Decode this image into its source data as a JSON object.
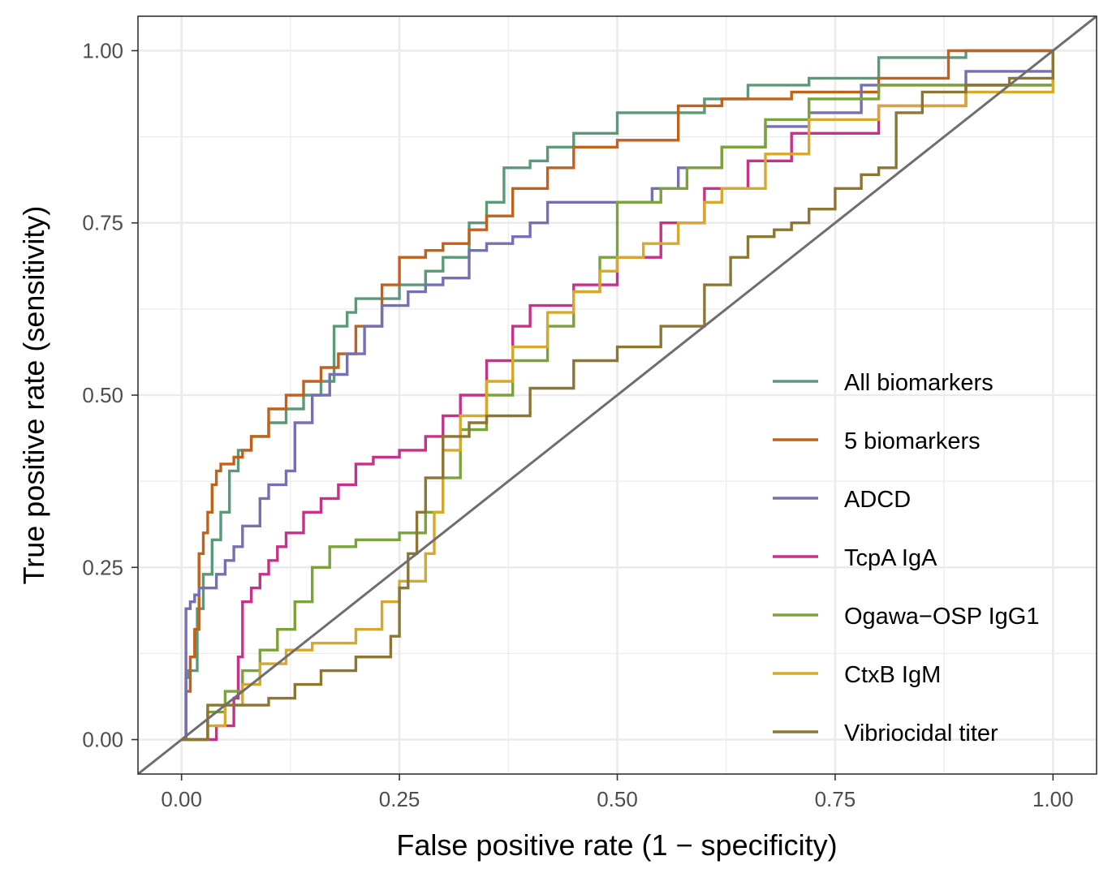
{
  "chart_data": {
    "type": "line",
    "title": "",
    "xlabel": "False positive rate (1 − specificity)",
    "ylabel": "True positive rate (sensitivity)",
    "xlim": [
      -0.05,
      1.05
    ],
    "ylim": [
      -0.05,
      1.05
    ],
    "x_ticks": [
      0,
      0.25,
      0.5,
      0.75,
      1
    ],
    "y_ticks": [
      0,
      0.25,
      0.5,
      0.75,
      1
    ],
    "x_tick_labels": [
      "0.00",
      "0.25",
      "0.50",
      "0.75",
      "1.00"
    ],
    "y_tick_labels": [
      "0.00",
      "0.25",
      "0.50",
      "0.75",
      "1.00"
    ],
    "grid": true,
    "legend_position": "bottom-right, inside",
    "reference_line": {
      "x": [
        0,
        1
      ],
      "y": [
        0,
        1
      ],
      "color": "#6e6e6e"
    },
    "series": [
      {
        "name": "All biomarkers",
        "color": "#5a9a78",
        "x": [
          0,
          0.005,
          0.008,
          0.01,
          0.018,
          0.025,
          0.035,
          0.045,
          0.055,
          0.065,
          0.08,
          0.1,
          0.12,
          0.14,
          0.16,
          0.175,
          0.19,
          0.2,
          0.22,
          0.25,
          0.28,
          0.3,
          0.33,
          0.35,
          0.37,
          0.4,
          0.42,
          0.45,
          0.5,
          0.55,
          0.6,
          0.65,
          0.72,
          0.8,
          0.9,
          1
        ],
        "y": [
          0,
          0.09,
          0.1,
          0.1,
          0.19,
          0.24,
          0.29,
          0.33,
          0.39,
          0.42,
          0.44,
          0.46,
          0.48,
          0.5,
          0.52,
          0.6,
          0.62,
          0.64,
          0.64,
          0.66,
          0.68,
          0.7,
          0.75,
          0.78,
          0.83,
          0.84,
          0.86,
          0.88,
          0.91,
          0.91,
          0.93,
          0.95,
          0.96,
          0.99,
          1,
          1
        ]
      },
      {
        "name": "5 biomarkers",
        "color": "#c0611c",
        "x": [
          0,
          0.005,
          0.01,
          0.015,
          0.02,
          0.025,
          0.03,
          0.035,
          0.04,
          0.045,
          0.05,
          0.06,
          0.065,
          0.07,
          0.08,
          0.1,
          0.12,
          0.14,
          0.16,
          0.18,
          0.2,
          0.23,
          0.25,
          0.28,
          0.3,
          0.33,
          0.35,
          0.38,
          0.42,
          0.45,
          0.5,
          0.57,
          0.62,
          0.7,
          0.8,
          0.88,
          1
        ],
        "y": [
          0,
          0.07,
          0.12,
          0.16,
          0.27,
          0.3,
          0.33,
          0.37,
          0.39,
          0.4,
          0.4,
          0.41,
          0.41,
          0.42,
          0.44,
          0.48,
          0.5,
          0.52,
          0.54,
          0.56,
          0.6,
          0.66,
          0.7,
          0.71,
          0.72,
          0.74,
          0.76,
          0.8,
          0.83,
          0.86,
          0.87,
          0.92,
          0.93,
          0.94,
          0.96,
          1,
          1
        ]
      },
      {
        "name": "ADCD",
        "color": "#7570b3",
        "x": [
          0,
          0.005,
          0.01,
          0.015,
          0.02,
          0.03,
          0.04,
          0.05,
          0.06,
          0.07,
          0.09,
          0.1,
          0.12,
          0.13,
          0.15,
          0.17,
          0.19,
          0.21,
          0.23,
          0.26,
          0.28,
          0.3,
          0.33,
          0.35,
          0.38,
          0.4,
          0.42,
          0.45,
          0.5,
          0.54,
          0.57,
          0.62,
          0.67,
          0.72,
          0.78,
          0.9,
          1
        ],
        "y": [
          0,
          0.19,
          0.2,
          0.21,
          0.22,
          0.22,
          0.24,
          0.26,
          0.28,
          0.31,
          0.35,
          0.37,
          0.39,
          0.46,
          0.5,
          0.53,
          0.56,
          0.6,
          0.63,
          0.65,
          0.66,
          0.67,
          0.71,
          0.72,
          0.73,
          0.75,
          0.78,
          0.78,
          0.78,
          0.8,
          0.83,
          0.86,
          0.89,
          0.91,
          0.95,
          0.97,
          1
        ]
      },
      {
        "name": "TcpA IgA",
        "color": "#c7318a",
        "x": [
          0,
          0.04,
          0.06,
          0.065,
          0.07,
          0.08,
          0.09,
          0.1,
          0.11,
          0.12,
          0.14,
          0.16,
          0.18,
          0.2,
          0.22,
          0.25,
          0.28,
          0.3,
          0.32,
          0.35,
          0.38,
          0.4,
          0.45,
          0.5,
          0.55,
          0.6,
          0.65,
          0.7,
          0.8,
          0.9,
          1
        ],
        "y": [
          0,
          0.02,
          0.06,
          0.12,
          0.2,
          0.22,
          0.24,
          0.26,
          0.28,
          0.3,
          0.33,
          0.35,
          0.37,
          0.4,
          0.41,
          0.42,
          0.44,
          0.47,
          0.5,
          0.55,
          0.6,
          0.63,
          0.66,
          0.7,
          0.75,
          0.8,
          0.84,
          0.88,
          0.92,
          0.95,
          1
        ]
      },
      {
        "name": "Ogawa−OSP IgG1",
        "color": "#7aa33a",
        "x": [
          0,
          0.03,
          0.05,
          0.07,
          0.09,
          0.11,
          0.13,
          0.15,
          0.17,
          0.2,
          0.25,
          0.28,
          0.3,
          0.32,
          0.35,
          0.38,
          0.42,
          0.45,
          0.48,
          0.5,
          0.53,
          0.55,
          0.58,
          0.62,
          0.67,
          0.72,
          0.8,
          0.9,
          1
        ],
        "y": [
          0,
          0.04,
          0.07,
          0.1,
          0.13,
          0.16,
          0.2,
          0.25,
          0.28,
          0.29,
          0.3,
          0.33,
          0.38,
          0.45,
          0.5,
          0.55,
          0.6,
          0.65,
          0.7,
          0.78,
          0.78,
          0.8,
          0.83,
          0.86,
          0.9,
          0.93,
          0.95,
          0.95,
          0.96
        ]
      },
      {
        "name": "CtxB IgM",
        "color": "#d6a92c",
        "x": [
          0,
          0.03,
          0.05,
          0.07,
          0.09,
          0.12,
          0.15,
          0.2,
          0.23,
          0.25,
          0.28,
          0.29,
          0.3,
          0.32,
          0.35,
          0.38,
          0.42,
          0.45,
          0.48,
          0.5,
          0.53,
          0.57,
          0.6,
          0.62,
          0.67,
          0.72,
          0.8,
          0.9,
          1
        ],
        "y": [
          0,
          0.02,
          0.05,
          0.08,
          0.11,
          0.13,
          0.14,
          0.16,
          0.2,
          0.23,
          0.27,
          0.33,
          0.42,
          0.47,
          0.52,
          0.57,
          0.62,
          0.65,
          0.68,
          0.7,
          0.72,
          0.75,
          0.78,
          0.8,
          0.85,
          0.9,
          0.92,
          0.94,
          0.96
        ]
      },
      {
        "name": "Vibriocidal titer",
        "color": "#8c7631",
        "x": [
          0,
          0.03,
          0.06,
          0.1,
          0.13,
          0.16,
          0.2,
          0.24,
          0.25,
          0.26,
          0.27,
          0.28,
          0.3,
          0.33,
          0.35,
          0.4,
          0.45,
          0.5,
          0.55,
          0.6,
          0.63,
          0.65,
          0.68,
          0.7,
          0.72,
          0.75,
          0.78,
          0.8,
          0.82,
          0.85,
          0.9,
          0.95,
          1
        ],
        "y": [
          0,
          0.05,
          0.05,
          0.06,
          0.08,
          0.1,
          0.12,
          0.15,
          0.22,
          0.27,
          0.33,
          0.38,
          0.44,
          0.46,
          0.47,
          0.51,
          0.55,
          0.57,
          0.6,
          0.66,
          0.7,
          0.73,
          0.74,
          0.75,
          0.77,
          0.8,
          0.82,
          0.83,
          0.91,
          0.94,
          0.95,
          0.96,
          1
        ]
      }
    ]
  }
}
